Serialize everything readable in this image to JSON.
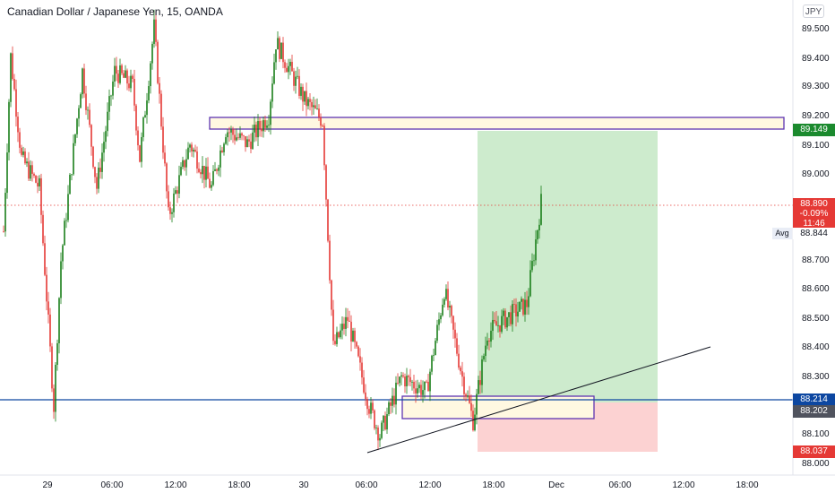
{
  "header": {
    "title": "Canadian Dollar / Japanese Yen, 15, OANDA",
    "currency_button": "JPY"
  },
  "y_axis": {
    "ticks": [
      "89.500",
      "89.400",
      "89.300",
      "89.200",
      "89.100",
      "89.000",
      "88.700",
      "88.600",
      "88.500",
      "88.400",
      "88.300",
      "88.100",
      "88.000"
    ],
    "avg_label": "Avg"
  },
  "x_axis": {
    "ticks": [
      "29",
      "06:00",
      "12:00",
      "18:00",
      "30",
      "06:00",
      "12:00",
      "18:00",
      "Dec",
      "06:00",
      "12:00",
      "18:00"
    ]
  },
  "price_tags": {
    "target": "89.149",
    "current_price": "88.890",
    "current_change": "-0.09%",
    "countdown": "11:46",
    "avg_value": "88.844",
    "blue_line": "88.214",
    "entry": "88.202",
    "stop": "88.037"
  },
  "colors": {
    "up": "#089981",
    "up_candle": "#1a7f1a",
    "down": "#e53935",
    "zone_fill": "#fff8e1",
    "zone_border": "#5e35b1",
    "profit_fill": "#cdebcd",
    "loss_fill": "#fcd2d2",
    "hline": "#0d47a1",
    "price_line": "#e53935",
    "tag_target": "#1b8a2e",
    "tag_blue": "#0d47a1",
    "tag_entry": "#50535e",
    "tag_stop": "#e53935"
  },
  "chart_data": {
    "type": "candlestick",
    "symbol": "Canadian Dollar / Japanese Yen, 15, OANDA",
    "ylim": [
      88.0,
      89.55
    ],
    "waypoints": [
      [
        0,
        88.8
      ],
      [
        4,
        89.4
      ],
      [
        10,
        89.05
      ],
      [
        20,
        88.95
      ],
      [
        28,
        88.2
      ],
      [
        32,
        88.7
      ],
      [
        44,
        89.35
      ],
      [
        52,
        88.95
      ],
      [
        62,
        89.35
      ],
      [
        72,
        89.3
      ],
      [
        76,
        89.05
      ],
      [
        84,
        89.5
      ],
      [
        92,
        88.85
      ],
      [
        104,
        89.1
      ],
      [
        116,
        88.95
      ],
      [
        124,
        89.15
      ],
      [
        136,
        89.1
      ],
      [
        148,
        89.2
      ],
      [
        152,
        89.45
      ],
      [
        168,
        89.25
      ],
      [
        178,
        89.18
      ],
      [
        184,
        88.4
      ],
      [
        192,
        88.5
      ],
      [
        204,
        88.2
      ],
      [
        210,
        88.1
      ],
      [
        222,
        88.3
      ],
      [
        236,
        88.25
      ],
      [
        246,
        88.6
      ],
      [
        256,
        88.3
      ],
      [
        262,
        88.15
      ],
      [
        270,
        88.45
      ],
      [
        280,
        88.5
      ],
      [
        292,
        88.55
      ],
      [
        300,
        88.9
      ]
    ],
    "current_price": 88.89,
    "horizontal_line": 88.214,
    "long_position": {
      "entry": 88.202,
      "target": 89.149,
      "stop": 88.037
    },
    "zones": [
      {
        "top": 89.2,
        "bottom": 89.15
      },
      {
        "top": 88.22,
        "bottom": 88.15
      }
    ],
    "trendline": [
      [
        205,
        88.04
      ],
      [
        400,
        88.4
      ]
    ]
  }
}
